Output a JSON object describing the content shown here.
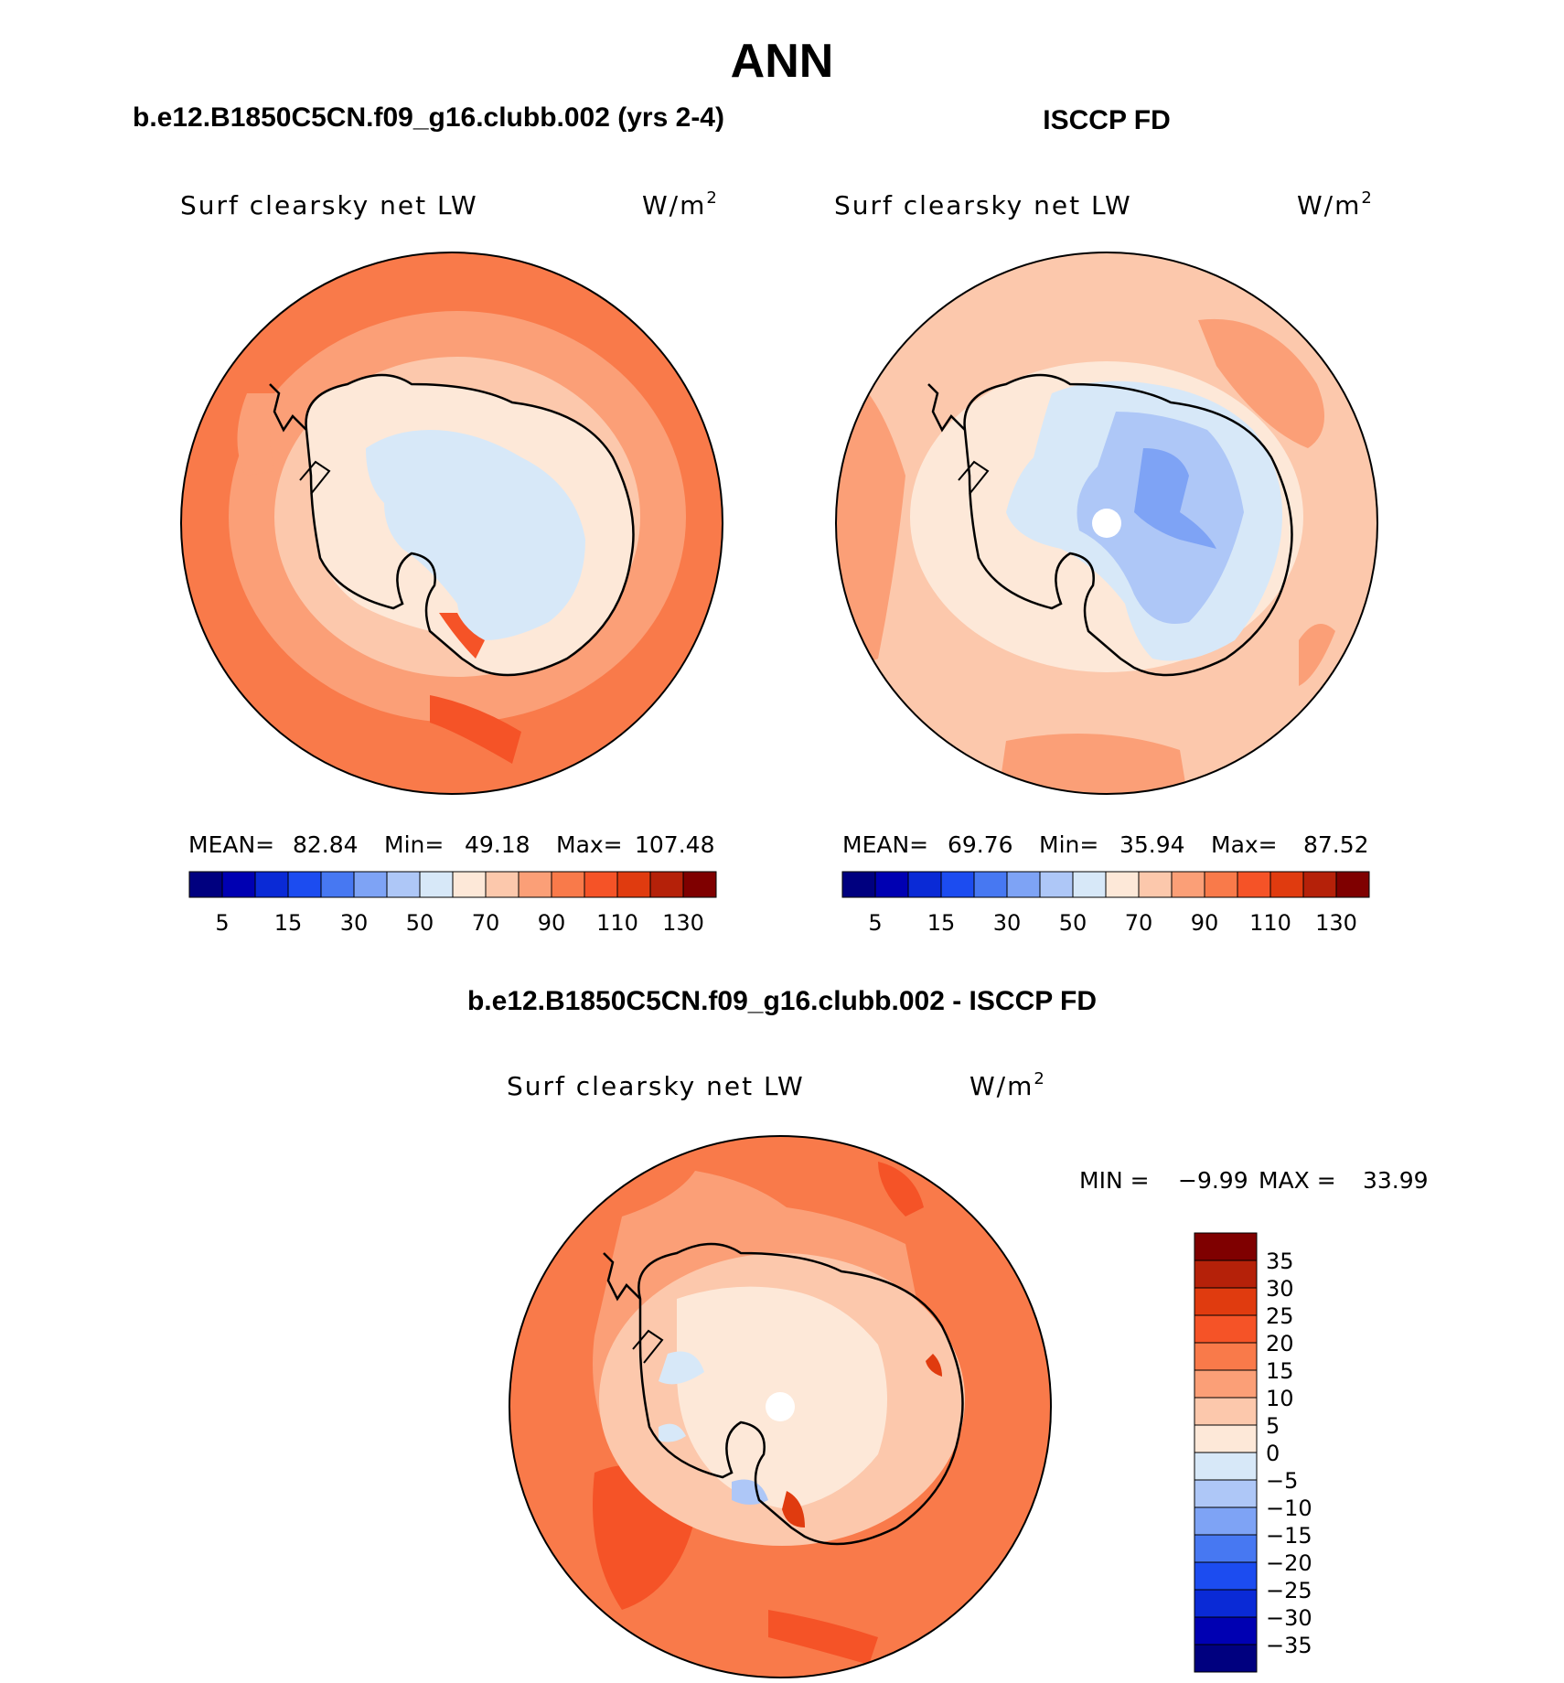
{
  "page": {
    "title": "ANN"
  },
  "panels": [
    {
      "header": "b.e12.B1850C5CN.f09_g16.clubb.002 (yrs 2-4)",
      "left_label": "Surf clearsky net LW",
      "units_base": "W/m",
      "units_exp": "2",
      "stats": {
        "mean_label": "MEAN=",
        "mean": "82.84",
        "min_label": "Min=",
        "min": "49.18",
        "max_label": "Max=",
        "max": "107.48"
      },
      "colorbar_ticks": [
        "5",
        "15",
        "30",
        "50",
        "70",
        "90",
        "110",
        "130"
      ]
    },
    {
      "header": "ISCCP FD",
      "left_label": "Surf clearsky net LW",
      "units_base": "W/m",
      "units_exp": "2",
      "stats": {
        "mean_label": "MEAN=",
        "mean": "69.76",
        "min_label": "Min=",
        "min": "35.94",
        "max_label": "Max=",
        "max": "87.52"
      },
      "colorbar_ticks": [
        "5",
        "15",
        "30",
        "50",
        "70",
        "90",
        "110",
        "130"
      ]
    },
    {
      "header": "b.e12.B1850C5CN.f09_g16.clubb.002 - ISCCP FD",
      "left_label": "Surf clearsky net LW",
      "units_base": "W/m",
      "units_exp": "2",
      "stats": {
        "min_label": "MIN =",
        "min": "−9.99",
        "max_label": "MAX =",
        "max": "33.99"
      },
      "colorbar_ticks": [
        "35",
        "30",
        "25",
        "20",
        "15",
        "10",
        "5",
        "0",
        "−5",
        "−10",
        "−15",
        "−20",
        "−25",
        "−30",
        "−35"
      ]
    }
  ],
  "colors": {
    "scale_16": [
      "#00007f",
      "#0000b2",
      "#0a2ad6",
      "#1c4cf0",
      "#4778f2",
      "#7ea3f5",
      "#aec7f7",
      "#d7e8f8",
      "#fde8d8",
      "#fcc8ac",
      "#fb9f77",
      "#f97a4a",
      "#f55327",
      "#e03b0f",
      "#b52109",
      "#7f0000"
    ],
    "diff_scale_16": [
      "#7f0000",
      "#b52109",
      "#e03b0f",
      "#f55327",
      "#f97a4a",
      "#fb9f77",
      "#fcc8ac",
      "#fde8d8",
      "#d7e8f8",
      "#aec7f7",
      "#7ea3f5",
      "#4778f2",
      "#1c4cf0",
      "#0a2ad6",
      "#0000b2",
      "#00007f"
    ],
    "ocean_model": "#f97a4a",
    "ocean_obs": "#fcc8ac",
    "ocean_diff": "#f97a4a",
    "land_outline": "#000000"
  }
}
